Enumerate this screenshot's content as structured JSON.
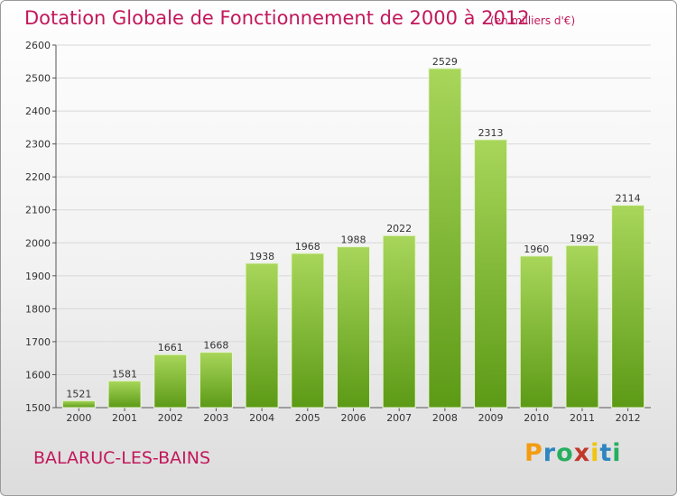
{
  "title": "Dotation Globale de Fonctionnement de 2000 à 2012",
  "subtitle": "(en milliers d'€)",
  "commune": "BALARUC-LES-BAINS",
  "brand": {
    "letters": [
      "P",
      "r",
      "o",
      "x",
      "i",
      "t",
      "i"
    ],
    "colors": [
      "#f39c12",
      "#2e86c1",
      "#27ae60",
      "#c0392b",
      "#f1c40f",
      "#2e86c1",
      "#27ae60"
    ]
  },
  "colors": {
    "title": "#c2185b",
    "bar_top": "#a8d65a",
    "bar_bottom": "#5c9a16",
    "grid": "#d8d8d8"
  },
  "chart_data": {
    "type": "bar",
    "categories": [
      "2000",
      "2001",
      "2002",
      "2003",
      "2004",
      "2005",
      "2006",
      "2007",
      "2008",
      "2009",
      "2010",
      "2011",
      "2012"
    ],
    "values": [
      1521,
      1581,
      1661,
      1668,
      1938,
      1968,
      1988,
      2022,
      2529,
      2313,
      1960,
      1992,
      2114
    ],
    "y_ticks": [
      1500,
      1600,
      1700,
      1800,
      1900,
      2000,
      2100,
      2200,
      2300,
      2400,
      2500,
      2600
    ],
    "ylim": [
      1500,
      2600
    ],
    "grid": true
  }
}
